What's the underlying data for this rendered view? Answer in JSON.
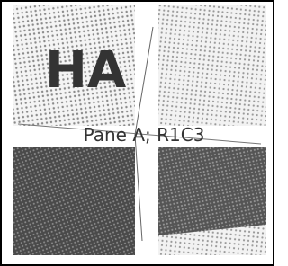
{
  "panes": {
    "top_left_text": "HA"
  },
  "caption": "Pane A; R1C3"
}
